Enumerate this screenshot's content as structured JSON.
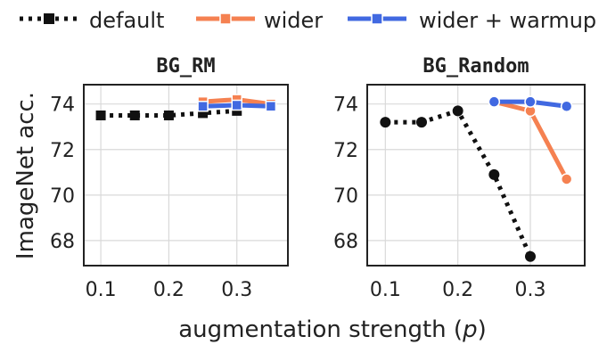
{
  "legend": {
    "placement": "top",
    "entries": [
      {
        "key": "default",
        "label": "default",
        "color": "#111111",
        "style": "dotted",
        "marker": "square"
      },
      {
        "key": "wider",
        "label": "wider",
        "color": "#f58151",
        "style": "solid",
        "marker": "square"
      },
      {
        "key": "warmup",
        "label": "wider + warmup",
        "color": "#4169e1",
        "style": "solid",
        "marker": "square"
      }
    ]
  },
  "shared": {
    "ylabel": "ImageNet acc.",
    "xlabel": "augmentation strength (p)",
    "xlabel_main": "augmentation strength (",
    "xlabel_var": "p",
    "xlabel_close": ")"
  },
  "chart_data": [
    {
      "type": "line",
      "title": "BG_RM",
      "xlim": [
        0.075,
        0.375
      ],
      "ylim": [
        66.9,
        74.85
      ],
      "xticks": [
        0.1,
        0.2,
        0.3
      ],
      "xtick_labels": [
        "0.1",
        "0.2",
        "0.3"
      ],
      "yticks": [
        68,
        70,
        72,
        74
      ],
      "ytick_labels": [
        "68",
        "70",
        "72",
        "74"
      ],
      "grid": true,
      "series": [
        {
          "name": "default",
          "marker": "square",
          "x": [
            0.1,
            0.15,
            0.2,
            0.25,
            0.3
          ],
          "y": [
            73.5,
            73.5,
            73.5,
            73.6,
            73.7
          ]
        },
        {
          "name": "wider",
          "marker": "square",
          "x": [
            0.25,
            0.3,
            0.35
          ],
          "y": [
            74.1,
            74.2,
            74.0
          ]
        },
        {
          "name": "wider + warmup",
          "marker": "square",
          "x": [
            0.25,
            0.3,
            0.35
          ],
          "y": [
            73.9,
            73.95,
            73.9
          ]
        }
      ]
    },
    {
      "type": "line",
      "title": "BG_Random",
      "xlim": [
        0.075,
        0.375
      ],
      "ylim": [
        66.9,
        74.85
      ],
      "xticks": [
        0.1,
        0.2,
        0.3
      ],
      "xtick_labels": [
        "0.1",
        "0.2",
        "0.3"
      ],
      "yticks": [
        68,
        70,
        72,
        74
      ],
      "ytick_labels": [
        "68",
        "70",
        "72",
        "74"
      ],
      "grid": true,
      "series": [
        {
          "name": "default",
          "marker": "circle",
          "x": [
            0.1,
            0.15,
            0.2,
            0.25,
            0.3
          ],
          "y": [
            73.2,
            73.2,
            73.7,
            70.9,
            67.3
          ]
        },
        {
          "name": "wider",
          "marker": "circle",
          "x": [
            0.25,
            0.3,
            0.35
          ],
          "y": [
            74.1,
            73.7,
            70.7
          ]
        },
        {
          "name": "wider + warmup",
          "marker": "circle",
          "x": [
            0.25,
            0.3,
            0.35
          ],
          "y": [
            74.1,
            74.1,
            73.9
          ]
        }
      ]
    }
  ]
}
